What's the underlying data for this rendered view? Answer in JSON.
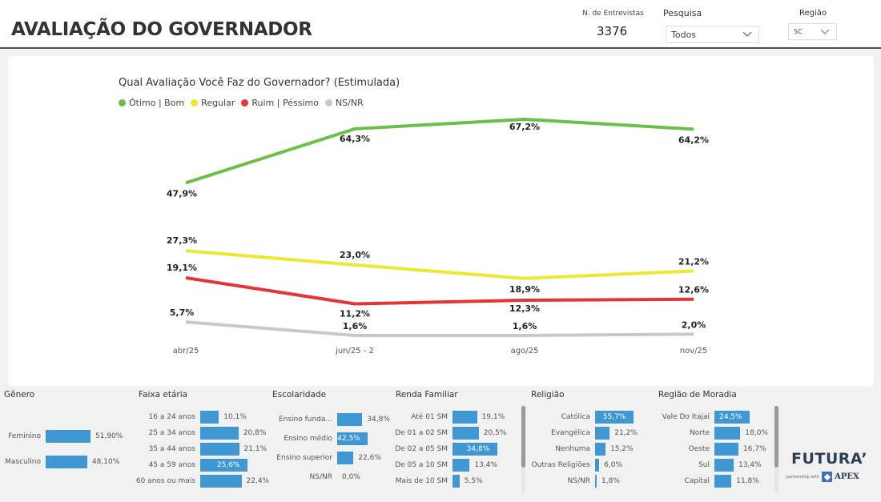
{
  "header": {
    "title": "AVALIAÇÃO DO GOVERNADOR",
    "kpi_label": "N. de Entrevistas",
    "kpi_value": "3376",
    "pesquisa_label": "Pesquisa",
    "pesquisa_value": "Todos",
    "regiao_label": "Região",
    "regiao_value": "SC"
  },
  "chart_data": {
    "type": "line",
    "title": "Qual Avaliação Você Faz do Governador? (Estimulada)",
    "categories": [
      "abr/25",
      "jun/25 - 2",
      "ago/25",
      "nov/25"
    ],
    "legend_placement": "top-left",
    "grid": false,
    "series": [
      {
        "name": "Ótimo | Bom",
        "color": "#6cbf4b",
        "values": [
          47.9,
          64.3,
          67.2,
          64.2
        ],
        "labels": [
          "47,9%",
          "64,3%",
          "67,2%",
          "64,2%"
        ]
      },
      {
        "name": "Regular",
        "color": "#ece830",
        "values": [
          27.3,
          23.0,
          18.9,
          21.2
        ],
        "labels": [
          "27,3%",
          "23,0%",
          "18,9%",
          "21,2%"
        ]
      },
      {
        "name": "Ruim | Péssimo",
        "color": "#e33535",
        "values": [
          19.1,
          11.2,
          12.3,
          12.6
        ],
        "labels": [
          "19,1%",
          "11,2%",
          "12,3%",
          "12,6%"
        ]
      },
      {
        "name": "NS/NR",
        "color": "#c8c8c8",
        "values": [
          5.7,
          1.6,
          1.6,
          2.0
        ],
        "labels": [
          "5,7%",
          "1,6%",
          "1,6%",
          "2,0%"
        ]
      }
    ]
  },
  "panels": [
    {
      "title": "Gênero",
      "items": [
        {
          "label": "Feminino",
          "value": 51.9,
          "text": "51,90%"
        },
        {
          "label": "Masculino",
          "value": 48.1,
          "text": "48,10%"
        }
      ]
    },
    {
      "title": "Faixa etária",
      "items": [
        {
          "label": "16 a 24 anos",
          "value": 10.1,
          "text": "10,1%"
        },
        {
          "label": "25 a 34 anos",
          "value": 20.8,
          "text": "20,8%"
        },
        {
          "label": "35 a 44 anos",
          "value": 21.1,
          "text": "21,1%"
        },
        {
          "label": "45 a 59 anos",
          "value": 25.6,
          "text": "25,6%"
        },
        {
          "label": "60 anos ou mais",
          "value": 22.4,
          "text": "22,4%"
        }
      ]
    },
    {
      "title": "Escolaridade",
      "items": [
        {
          "label": "Ensino funda...",
          "value": 34.8,
          "text": "34,8%"
        },
        {
          "label": "Ensino médio",
          "value": 42.5,
          "text": "42,5%"
        },
        {
          "label": "Ensino superior",
          "value": 22.6,
          "text": "22,6%"
        },
        {
          "label": "NS/NR",
          "value": 0.0,
          "text": "0,0%"
        }
      ]
    },
    {
      "title": "Renda Familiar",
      "items": [
        {
          "label": "Até 01 SM",
          "value": 19.1,
          "text": "19,1%"
        },
        {
          "label": "De 01 a 02 SM",
          "value": 20.5,
          "text": "20,5%"
        },
        {
          "label": "De 02 a 05 SM",
          "value": 34.8,
          "text": "34,8%"
        },
        {
          "label": "De 05 a 10 SM",
          "value": 13.4,
          "text": "13,4%"
        },
        {
          "label": "Mais de 10 SM",
          "value": 5.5,
          "text": "5,5%"
        }
      ]
    },
    {
      "title": "Religião",
      "items": [
        {
          "label": "Católica",
          "value": 55.7,
          "text": "55,7%"
        },
        {
          "label": "Evangélica",
          "value": 21.2,
          "text": "21,2%"
        },
        {
          "label": "Nenhuma",
          "value": 15.2,
          "text": "15,2%"
        },
        {
          "label": "Outras Religiões",
          "value": 6.0,
          "text": "6,0%"
        },
        {
          "label": "NS/NR",
          "value": 1.8,
          "text": "1,8%"
        }
      ]
    },
    {
      "title": "Região de Moradia",
      "items": [
        {
          "label": "Vale Do Itajaí",
          "value": 24.5,
          "text": "24,5%"
        },
        {
          "label": "Norte",
          "value": 18.0,
          "text": "18,0%"
        },
        {
          "label": "Oeste",
          "value": 16.7,
          "text": "16,7%"
        },
        {
          "label": "Sul",
          "value": 13.4,
          "text": "13,4%"
        },
        {
          "label": "Capital",
          "value": 11.8,
          "text": "11,8%"
        }
      ]
    }
  ],
  "bar_color": "#3f97d4",
  "logo": {
    "name": "FUTURA’",
    "partner_text": "partnership with",
    "partner_name": "APEX"
  }
}
